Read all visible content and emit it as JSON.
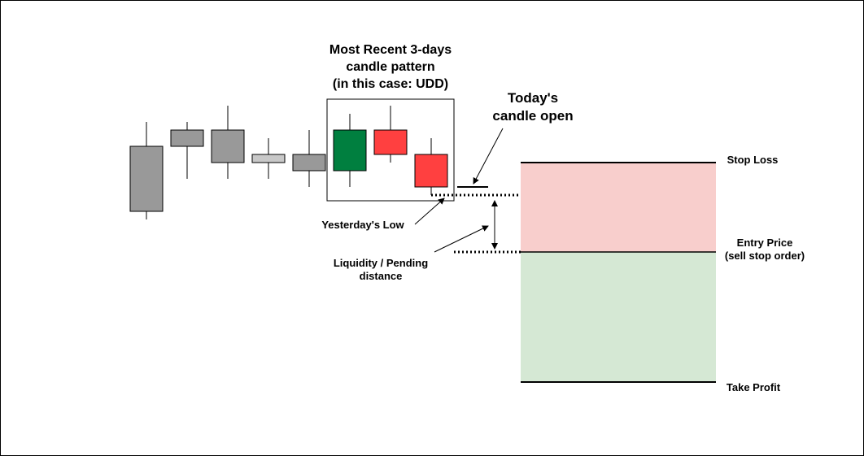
{
  "pattern_title": [
    "Most Recent 3-days",
    "candle pattern",
    "(in this case: UDD)"
  ],
  "today_label": [
    "Today's",
    "candle open"
  ],
  "yesterday_low_label": "Yesterday's Low",
  "liquidity_label": [
    "Liquidity / Pending",
    "distance"
  ],
  "levels": {
    "stop_loss": "Stop Loss",
    "entry_price": [
      "Entry Price",
      "(sell stop order)"
    ],
    "take_profit": "Take Profit"
  },
  "colors": {
    "neutral_candle": "#999999",
    "neutral_candle_light": "#c8c8c8",
    "up_candle": "#007f3f",
    "down_candle": "#ff4040",
    "loss_zone": "#f8cecc",
    "profit_zone": "#d5e8d4"
  },
  "candles": [
    {
      "name": "candle-1",
      "direction": "neutral"
    },
    {
      "name": "candle-2",
      "direction": "neutral"
    },
    {
      "name": "candle-3",
      "direction": "neutral"
    },
    {
      "name": "candle-4",
      "direction": "neutral-small"
    },
    {
      "name": "candle-5",
      "direction": "neutral"
    },
    {
      "name": "candle-up",
      "direction": "up"
    },
    {
      "name": "candle-down-1",
      "direction": "down"
    },
    {
      "name": "candle-down-2",
      "direction": "down"
    }
  ]
}
